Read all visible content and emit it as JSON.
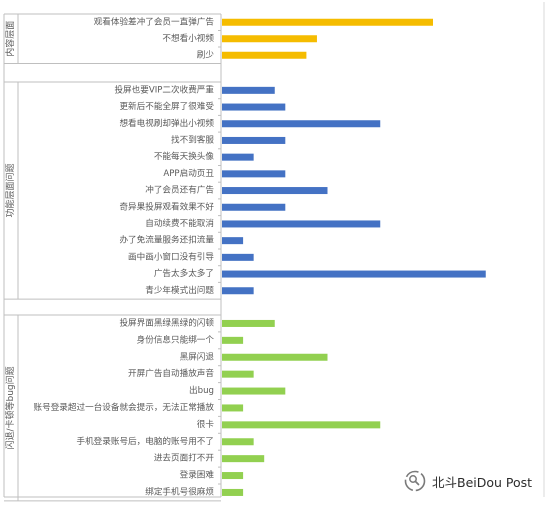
{
  "chart_data": {
    "type": "bar",
    "orientation": "horizontal",
    "groups": [
      {
        "name": "内容层面",
        "color": "#F5BC00",
        "categories": [
          "观看体验差冲了会员一直弹广告",
          "不想看小视频",
          "刷少"
        ],
        "values": [
          10,
          4.5,
          4
        ]
      },
      {
        "name": "功能层面问题",
        "color": "#4472C4",
        "categories": [
          "投屏也要VIP二次收费严重",
          "更新后不能全屏了很难受",
          "想看电视刷却弹出小视频",
          "找不到客服",
          "不能每天换头像",
          "APP启动页丑",
          "冲了会员还有广告",
          "奇异果投屏观看效果不好",
          "自动续费不能取消",
          "办了免流量服务还扣流量",
          "画中画小窗口没有引导",
          "广告太多太多了",
          "青少年模式出问题"
        ],
        "values": [
          2.5,
          3,
          7.5,
          3,
          1.5,
          3,
          5,
          3,
          7.5,
          1,
          1.5,
          12.5,
          1.5
        ]
      },
      {
        "name": "闪退/卡顿等bug问题",
        "color": "#92D050",
        "categories": [
          "投屏界面黑绿黑绿的闪顿",
          "身份信息只能绑一个",
          "黑屏闪退",
          "开屏广告自动播放声音",
          "出bug",
          "账号登录超过一台设备就会提示，无法正常播放",
          "很卡",
          "手机登录账号后，电脑的账号用不了",
          "进去页面打不开",
          "登录困难",
          "绑定手机号很麻烦"
        ],
        "values": [
          2.5,
          1,
          5,
          1.5,
          3,
          1,
          7.5,
          1.5,
          2,
          1,
          1
        ]
      }
    ],
    "xlim": [
      0,
      13
    ],
    "grid": false,
    "legend": "none"
  },
  "watermark": {
    "icon": "wechat-search-icon",
    "text": "北斗BeiDou Post"
  }
}
